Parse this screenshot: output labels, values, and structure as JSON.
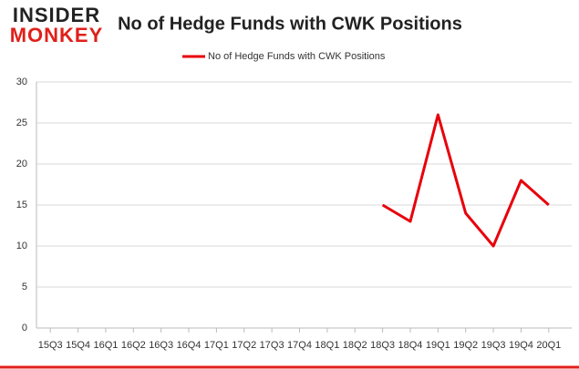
{
  "logo": {
    "top": "INSIDER",
    "bottom": "MONKEY"
  },
  "chart_data": {
    "type": "line",
    "title": "No of Hedge Funds with CWK Positions",
    "categories": [
      "15Q3",
      "15Q4",
      "16Q1",
      "16Q2",
      "16Q3",
      "16Q4",
      "17Q1",
      "17Q2",
      "17Q3",
      "17Q4",
      "18Q1",
      "18Q2",
      "18Q3",
      "18Q4",
      "19Q1",
      "19Q2",
      "19Q3",
      "19Q4",
      "20Q1"
    ],
    "series": [
      {
        "name": "No of Hedge Funds with CWK Positions",
        "color": "#e8000b",
        "values": [
          null,
          null,
          null,
          null,
          null,
          null,
          null,
          null,
          null,
          null,
          null,
          null,
          15,
          13,
          26,
          14,
          10,
          18,
          15
        ]
      }
    ],
    "ylim": [
      0,
      30
    ],
    "yticks": [
      0,
      5,
      10,
      15,
      20,
      25,
      30
    ],
    "grid": true,
    "legend": "top"
  }
}
